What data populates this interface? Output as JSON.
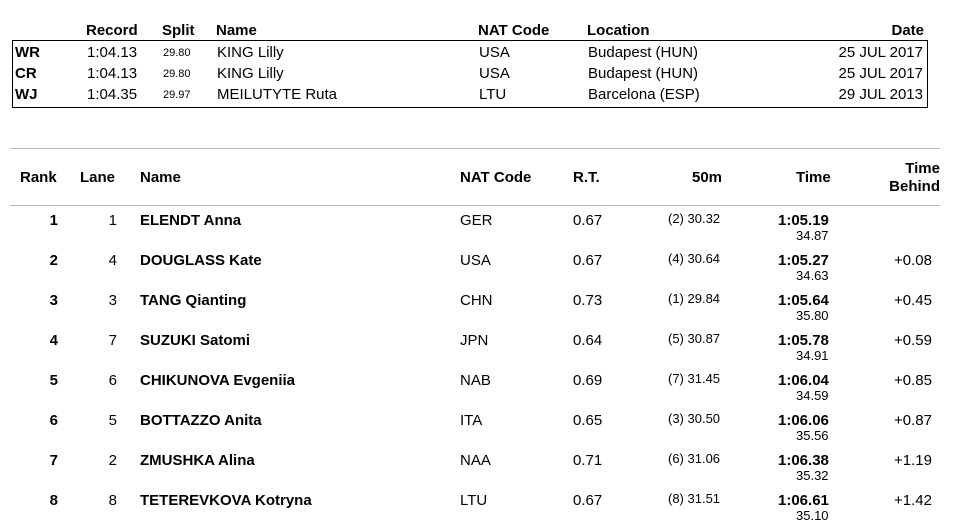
{
  "records": {
    "headers": {
      "record": "Record",
      "split": "Split",
      "name": "Name",
      "nat_code": "NAT Code",
      "location": "Location",
      "date": "Date"
    },
    "rows": [
      {
        "code": "WR",
        "record": "1:04.13",
        "split": "29.80",
        "name": "KING Lilly",
        "nat": "USA",
        "location": "Budapest (HUN)",
        "date": "25 JUL 2017"
      },
      {
        "code": "CR",
        "record": "1:04.13",
        "split": "29.80",
        "name": "KING Lilly",
        "nat": "USA",
        "location": "Budapest (HUN)",
        "date": "25 JUL 2017"
      },
      {
        "code": "WJ",
        "record": "1:04.35",
        "split": "29.97",
        "name": "MEILUTYTE Ruta",
        "nat": "LTU",
        "location": "Barcelona (ESP)",
        "date": "29 JUL 2013"
      }
    ]
  },
  "results": {
    "headers": {
      "rank": "Rank",
      "lane": "Lane",
      "name": "Name",
      "nat_code": "NAT Code",
      "rt": "R.T.",
      "split50": "50m",
      "time": "Time",
      "behind_line1": "Time",
      "behind_line2": "Behind"
    },
    "rows": [
      {
        "rank": "1",
        "lane": "1",
        "name": "ELENDT Anna",
        "nat": "GER",
        "rt": "0.67",
        "split50": "(2) 30.32",
        "time": "1:05.19",
        "sub": "34.87",
        "behind": ""
      },
      {
        "rank": "2",
        "lane": "4",
        "name": "DOUGLASS Kate",
        "nat": "USA",
        "rt": "0.67",
        "split50": "(4) 30.64",
        "time": "1:05.27",
        "sub": "34.63",
        "behind": "+0.08"
      },
      {
        "rank": "3",
        "lane": "3",
        "name": "TANG Qianting",
        "nat": "CHN",
        "rt": "0.73",
        "split50": "(1) 29.84",
        "time": "1:05.64",
        "sub": "35.80",
        "behind": "+0.45"
      },
      {
        "rank": "4",
        "lane": "7",
        "name": "SUZUKI Satomi",
        "nat": "JPN",
        "rt": "0.64",
        "split50": "(5) 30.87",
        "time": "1:05.78",
        "sub": "34.91",
        "behind": "+0.59"
      },
      {
        "rank": "5",
        "lane": "6",
        "name": "CHIKUNOVA Evgeniia",
        "nat": "NAB",
        "rt": "0.69",
        "split50": "(7) 31.45",
        "time": "1:06.04",
        "sub": "34.59",
        "behind": "+0.85"
      },
      {
        "rank": "6",
        "lane": "5",
        "name": "BOTTAZZO Anita",
        "nat": "ITA",
        "rt": "0.65",
        "split50": "(3) 30.50",
        "time": "1:06.06",
        "sub": "35.56",
        "behind": "+0.87"
      },
      {
        "rank": "7",
        "lane": "2",
        "name": "ZMUSHKA Alina",
        "nat": "NAA",
        "rt": "0.71",
        "split50": "(6) 31.06",
        "time": "1:06.38",
        "sub": "35.32",
        "behind": "+1.19"
      },
      {
        "rank": "8",
        "lane": "8",
        "name": "TETEREVKOVA Kotryna",
        "nat": "LTU",
        "rt": "0.67",
        "split50": "(8) 31.51",
        "time": "1:06.61",
        "sub": "35.10",
        "behind": "+1.42"
      }
    ]
  }
}
